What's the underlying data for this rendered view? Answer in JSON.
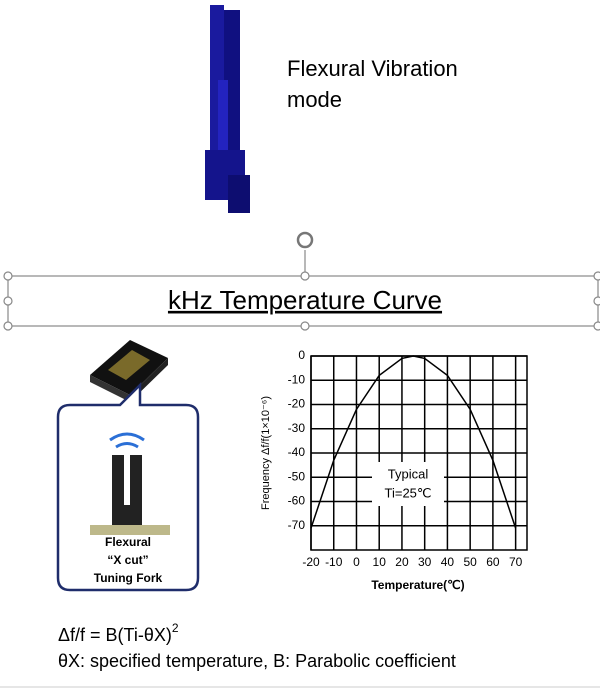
{
  "slide": {
    "mode_label": [
      "Flexural Vibration",
      "mode"
    ],
    "title": "kHz Temperature Curve",
    "fork_label": [
      "Flexural",
      "“X cut”",
      "Tuning Fork"
    ],
    "formula": [
      "Δf/f = B(Ti-θX)",
      "2"
    ],
    "formula_note": "θX: specified temperature, B: Parabolic coefficient"
  },
  "chart_data": {
    "type": "line",
    "ylabel": "Frequency Δf/f(1×10⁻⁶)",
    "xlabel": "Temperature(℃)",
    "annotation": [
      "Typical",
      "Ti=25℃"
    ],
    "x": [
      -20,
      -10,
      0,
      10,
      20,
      25,
      30,
      40,
      50,
      60,
      70
    ],
    "values": [
      -71,
      -43,
      -22,
      -8,
      -1,
      0,
      -1,
      -8,
      -22,
      -43,
      -71
    ],
    "color": "#000000",
    "xlim": [
      -20,
      75
    ],
    "ylim": [
      -80,
      0
    ],
    "xticks": [
      -20,
      -10,
      0,
      10,
      20,
      30,
      40,
      50,
      60,
      70
    ],
    "yticks": [
      0,
      -10,
      -20,
      -30,
      -40,
      -50,
      -60,
      -70
    ],
    "grid": true
  }
}
